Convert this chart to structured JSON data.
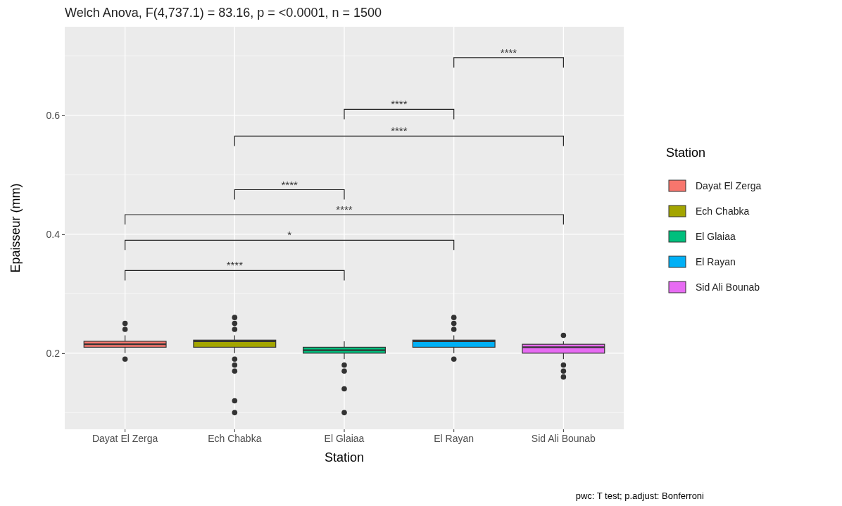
{
  "chart_data": {
    "type": "box",
    "title": "Welch Anova, F(4,737.1) = 83.16, p = <0.0001, n = 1500",
    "xlabel": "Station",
    "ylabel": "Epaisseur (mm)",
    "legend_title": "Station",
    "categories": [
      "Dayat El Zerga",
      "Ech Chabka",
      "El Glaiaa",
      "El Rayan",
      "Sid Ali Bounab"
    ],
    "series": [
      {
        "name": "Dayat El Zerga",
        "color": "#f8766d",
        "boxes": [
          {
            "low": 0.2,
            "q1": 0.21,
            "median": 0.215,
            "q3": 0.22,
            "high": 0.23,
            "outliers": [
              0.24,
              0.25,
              0.19
            ]
          },
          null,
          null,
          null,
          null
        ]
      },
      {
        "name": "Ech Chabka",
        "color": "#a3a500",
        "boxes": [
          null,
          {
            "low": 0.2,
            "q1": 0.21,
            "median": 0.22,
            "q3": 0.222,
            "high": 0.23,
            "outliers": [
              0.24,
              0.25,
              0.26,
              0.19,
              0.18,
              0.17,
              0.12,
              0.1
            ]
          },
          null,
          null,
          null
        ]
      },
      {
        "name": "El Glaiaa",
        "color": "#00bf7d",
        "boxes": [
          null,
          null,
          {
            "low": 0.19,
            "q1": 0.2,
            "median": 0.205,
            "q3": 0.21,
            "high": 0.22,
            "outliers": [
              0.18,
              0.17,
              0.14,
              0.1
            ]
          },
          null,
          null
        ]
      },
      {
        "name": "El Rayan",
        "color": "#00b0f6",
        "boxes": [
          null,
          null,
          null,
          {
            "low": 0.2,
            "q1": 0.21,
            "median": 0.22,
            "q3": 0.222,
            "high": 0.23,
            "outliers": [
              0.24,
              0.25,
              0.26,
              0.19
            ]
          },
          null
        ]
      },
      {
        "name": "Sid Ali Bounab",
        "color": "#e76bf3",
        "boxes": [
          null,
          null,
          null,
          null,
          {
            "low": 0.19,
            "q1": 0.2,
            "median": 0.21,
            "q3": 0.215,
            "high": 0.22,
            "outliers": [
              0.23,
              0.18,
              0.17,
              0.16
            ]
          }
        ]
      }
    ],
    "ylim": [
      0.072,
      0.749
    ],
    "yticks": [
      0.2,
      0.4,
      0.6
    ],
    "grid": true,
    "legend": "right",
    "annotations": [
      "****",
      "*",
      "****",
      "****",
      "****",
      "****",
      "****",
      "pwc: T test; p.adjust: Bonferroni"
    ]
  }
}
